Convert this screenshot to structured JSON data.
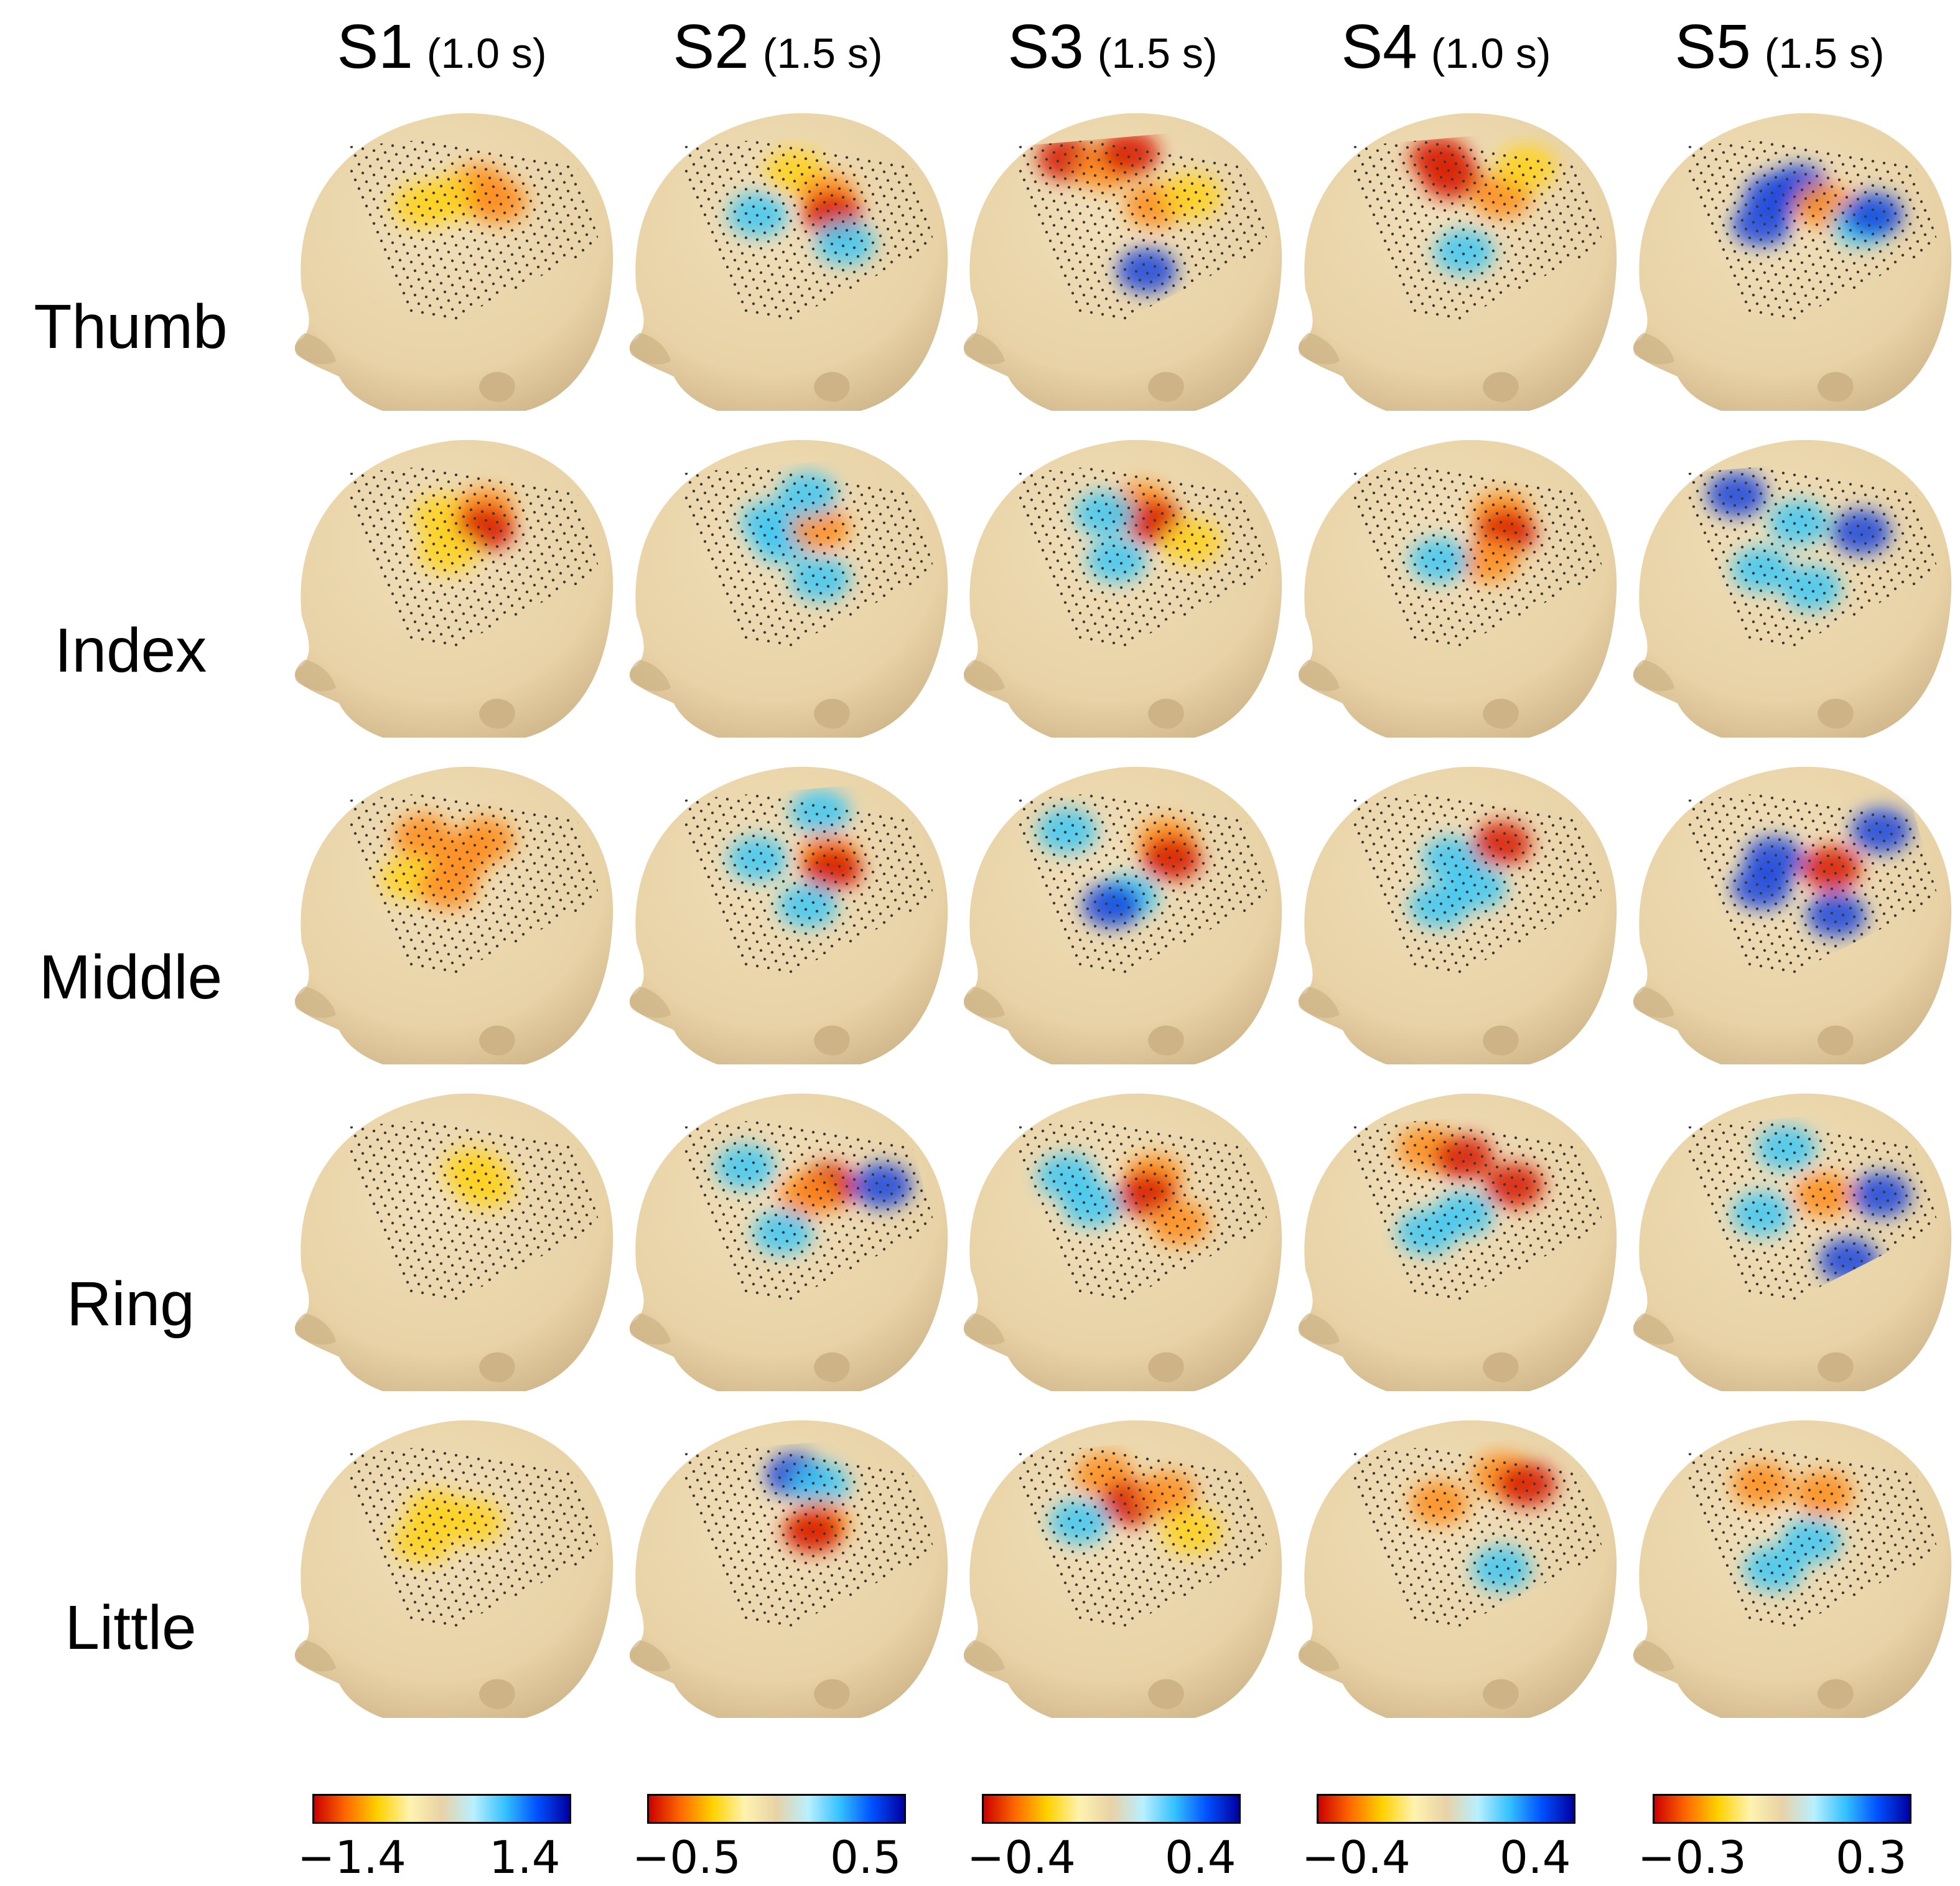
{
  "columns": [
    {
      "subject": "S1",
      "duration": "(1.0 s)",
      "colorbar": {
        "min": "−1.4",
        "max": "1.4"
      }
    },
    {
      "subject": "S2",
      "duration": "(1.5 s)",
      "colorbar": {
        "min": "−0.5",
        "max": "0.5"
      }
    },
    {
      "subject": "S3",
      "duration": "(1.5 s)",
      "colorbar": {
        "min": "−0.4",
        "max": "0.4"
      }
    },
    {
      "subject": "S4",
      "duration": "(1.0 s)",
      "colorbar": {
        "min": "−0.4",
        "max": "0.4"
      }
    },
    {
      "subject": "S5",
      "duration": "(1.5 s)",
      "colorbar": {
        "min": "−0.3",
        "max": "0.3"
      }
    }
  ],
  "rows": [
    {
      "label": "Thumb"
    },
    {
      "label": "Index"
    },
    {
      "label": "Middle"
    },
    {
      "label": "Ring"
    },
    {
      "label": "Little"
    }
  ],
  "colors": {
    "head_skin": "#e8d2a6",
    "head_shadow": "#cdb386",
    "electrode_dot": "#3a3a3a",
    "colormap": [
      "#cc0000",
      "#ff6a00",
      "#ffd200",
      "#fff3b0",
      "#e8d2a6",
      "#b8f0ff",
      "#33c0ff",
      "#0050ff",
      "#0000a0"
    ]
  },
  "activation_maps": [
    [
      [
        [
          "o",
          0.52,
          0.3
        ],
        [
          "y",
          0.42,
          0.36
        ],
        [
          "o",
          0.6,
          0.38
        ],
        [
          "y",
          0.3,
          0.4
        ]
      ],
      [
        [
          "y",
          0.38,
          0.32
        ],
        [
          "o",
          0.55,
          0.28
        ],
        [
          "r",
          0.55,
          0.38
        ],
        [
          "y",
          0.4,
          0.5
        ]
      ],
      [
        [
          "o",
          0.3,
          0.28
        ],
        [
          "o",
          0.45,
          0.4
        ],
        [
          "o",
          0.55,
          0.3
        ],
        [
          "y",
          0.25,
          0.5
        ],
        [
          "o",
          0.4,
          0.55
        ]
      ],
      [
        [
          "y",
          0.5,
          0.32
        ],
        [
          "y",
          0.55,
          0.4
        ]
      ],
      [
        [
          "y",
          0.35,
          0.4
        ],
        [
          "y",
          0.5,
          0.45
        ],
        [
          "y",
          0.3,
          0.55
        ]
      ]
    ],
    [
      [
        [
          "y",
          0.45,
          0.22
        ],
        [
          "o",
          0.58,
          0.35
        ],
        [
          "r",
          0.6,
          0.45
        ],
        [
          "c",
          0.65,
          0.6
        ],
        [
          "c",
          0.3,
          0.45
        ]
      ],
      [
        [
          "c",
          0.35,
          0.35
        ],
        [
          "c",
          0.4,
          0.45
        ],
        [
          "o",
          0.55,
          0.38
        ],
        [
          "c",
          0.5,
          0.2
        ],
        [
          "c",
          0.55,
          0.65
        ]
      ],
      [
        [
          "c",
          0.55,
          0.15
        ],
        [
          "o",
          0.58,
          0.38
        ],
        [
          "r",
          0.6,
          0.45
        ],
        [
          "c",
          0.3,
          0.4
        ],
        [
          "c",
          0.5,
          0.65
        ]
      ],
      [
        [
          "c",
          0.25,
          0.3
        ],
        [
          "r",
          0.58,
          0.4
        ],
        [
          "o",
          0.5,
          0.45
        ],
        [
          "b",
          0.8,
          0.4
        ],
        [
          "c",
          0.4,
          0.65
        ]
      ],
      [
        [
          "b",
          0.45,
          0.2
        ],
        [
          "c",
          0.55,
          0.25
        ],
        [
          "o",
          0.55,
          0.45
        ],
        [
          "r",
          0.52,
          0.5
        ]
      ]
    ],
    [
      [
        [
          "r",
          0.2,
          0.15
        ],
        [
          "o",
          0.35,
          0.2
        ],
        [
          "r",
          0.45,
          0.12
        ],
        [
          "o",
          0.55,
          0.4
        ],
        [
          "b",
          0.52,
          0.75
        ],
        [
          "y",
          0.7,
          0.35
        ]
      ],
      [
        [
          "o",
          0.5,
          0.25
        ],
        [
          "r",
          0.55,
          0.35
        ],
        [
          "c",
          0.35,
          0.3
        ],
        [
          "c",
          0.4,
          0.55
        ],
        [
          "y",
          0.7,
          0.45
        ]
      ],
      [
        [
          "c",
          0.2,
          0.25
        ],
        [
          "o",
          0.6,
          0.3
        ],
        [
          "r",
          0.62,
          0.4
        ],
        [
          "c",
          0.45,
          0.6
        ],
        [
          "b",
          0.38,
          0.65
        ]
      ],
      [
        [
          "c",
          0.2,
          0.35
        ],
        [
          "c",
          0.3,
          0.5
        ],
        [
          "o",
          0.55,
          0.35
        ],
        [
          "r",
          0.52,
          0.45
        ],
        [
          "o",
          0.65,
          0.6
        ]
      ],
      [
        [
          "o",
          0.35,
          0.2
        ],
        [
          "r",
          0.45,
          0.35
        ],
        [
          "o",
          0.6,
          0.3
        ],
        [
          "c",
          0.25,
          0.45
        ],
        [
          "y",
          0.7,
          0.5
        ]
      ]
    ],
    [
      [
        [
          "r",
          0.35,
          0.15
        ],
        [
          "r",
          0.4,
          0.25
        ],
        [
          "o",
          0.6,
          0.35
        ],
        [
          "c",
          0.45,
          0.65
        ],
        [
          "y",
          0.7,
          0.2
        ]
      ],
      [
        [
          "o",
          0.6,
          0.3
        ],
        [
          "r",
          0.62,
          0.4
        ],
        [
          "o",
          0.55,
          0.55
        ],
        [
          "c",
          0.35,
          0.55
        ]
      ],
      [
        [
          "c",
          0.4,
          0.4
        ],
        [
          "c",
          0.5,
          0.55
        ],
        [
          "r",
          0.6,
          0.32
        ],
        [
          "c",
          0.35,
          0.65
        ]
      ],
      [
        [
          "o",
          0.3,
          0.2
        ],
        [
          "r",
          0.45,
          0.25
        ],
        [
          "r",
          0.65,
          0.4
        ],
        [
          "c",
          0.45,
          0.55
        ],
        [
          "c",
          0.3,
          0.65
        ]
      ],
      [
        [
          "o",
          0.35,
          0.35
        ],
        [
          "o",
          0.6,
          0.2
        ],
        [
          "r",
          0.7,
          0.25
        ],
        [
          "c",
          0.6,
          0.7
        ]
      ]
    ],
    [
      [
        [
          "b",
          0.35,
          0.35
        ],
        [
          "b",
          0.3,
          0.5
        ],
        [
          "b",
          0.45,
          0.3
        ],
        [
          "o",
          0.55,
          0.4
        ],
        [
          "c",
          0.7,
          0.5
        ],
        [
          "b",
          0.75,
          0.45
        ]
      ],
      [
        [
          "b",
          0.2,
          0.2
        ],
        [
          "c",
          0.45,
          0.35
        ],
        [
          "b",
          0.7,
          0.4
        ],
        [
          "c",
          0.3,
          0.6
        ],
        [
          "c",
          0.5,
          0.7
        ]
      ],
      [
        [
          "b",
          0.35,
          0.4
        ],
        [
          "b",
          0.3,
          0.55
        ],
        [
          "r",
          0.58,
          0.45
        ],
        [
          "b",
          0.78,
          0.25
        ],
        [
          "b",
          0.6,
          0.7
        ]
      ],
      [
        [
          "c",
          0.4,
          0.2
        ],
        [
          "c",
          0.3,
          0.55
        ],
        [
          "o",
          0.55,
          0.45
        ],
        [
          "b",
          0.78,
          0.45
        ],
        [
          "b",
          0.65,
          0.8
        ]
      ],
      [
        [
          "o",
          0.3,
          0.25
        ],
        [
          "o",
          0.55,
          0.3
        ],
        [
          "c",
          0.5,
          0.55
        ],
        [
          "c",
          0.35,
          0.7
        ]
      ]
    ]
  ]
}
